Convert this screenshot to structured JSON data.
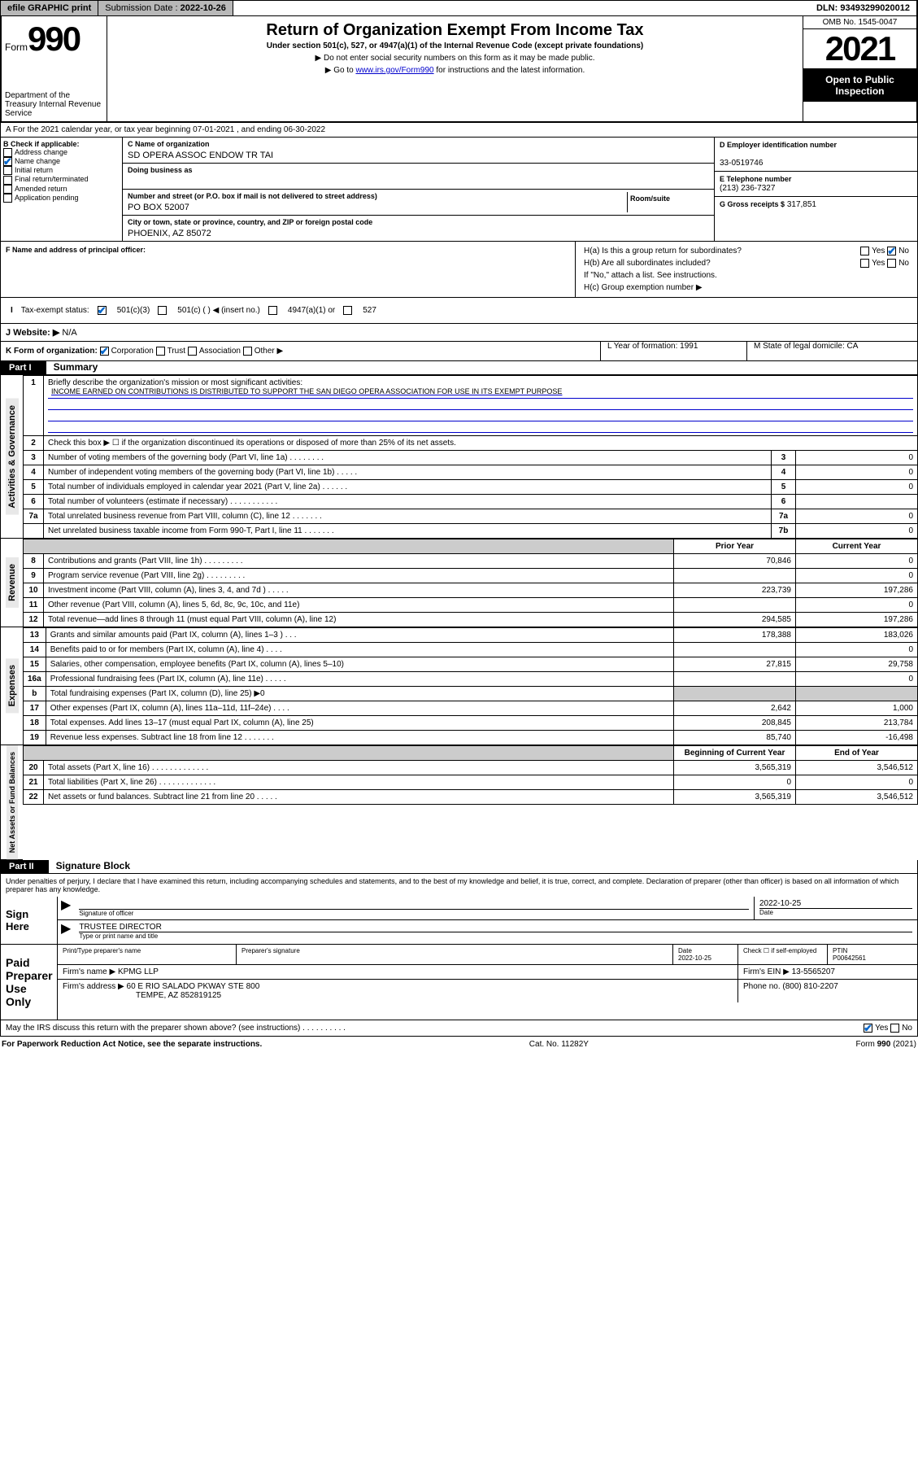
{
  "topbar": {
    "efile": "efile GRAPHIC print",
    "sub_label": "Submission Date :",
    "sub_date": "2022-10-26",
    "dln": "DLN: 93493299020012"
  },
  "header": {
    "form_word": "Form",
    "form_num": "990",
    "dept": "Department of the Treasury\nInternal Revenue Service",
    "title": "Return of Organization Exempt From Income Tax",
    "sub1": "Under section 501(c), 527, or 4947(a)(1) of the Internal Revenue Code (except private foundations)",
    "sub2": "▶ Do not enter social security numbers on this form as it may be made public.",
    "sub3_pre": "▶ Go to ",
    "sub3_link": "www.irs.gov/Form990",
    "sub3_post": " for instructions and the latest information.",
    "omb": "OMB No. 1545-0047",
    "year": "2021",
    "open": "Open to Public Inspection"
  },
  "line_a": "A For the 2021 calendar year, or tax year beginning 07-01-2021   , and ending 06-30-2022",
  "col_b": {
    "title": "B Check if applicable:",
    "items": [
      "Address change",
      "Name change",
      "Initial return",
      "Final return/terminated",
      "Amended return",
      "Application pending"
    ],
    "checked_idx": 1
  },
  "col_c": {
    "name_lbl": "C Name of organization",
    "name": "SD OPERA ASSOC ENDOW TR TAI",
    "dba_lbl": "Doing business as",
    "addr_lbl": "Number and street (or P.O. box if mail is not delivered to street address)",
    "addr": "PO BOX 52007",
    "room_lbl": "Room/suite",
    "city_lbl": "City or town, state or province, country, and ZIP or foreign postal code",
    "city": "PHOENIX, AZ  85072"
  },
  "col_d": {
    "lbl": "D Employer identification number",
    "val": "33-0519746"
  },
  "col_e": {
    "lbl": "E Telephone number",
    "val": "(213) 236-7327"
  },
  "col_g": {
    "lbl": "G Gross receipts $",
    "val": "317,851"
  },
  "f_lbl": "F  Name and address of principal officer:",
  "h": {
    "a": "H(a)  Is this a group return for subordinates?",
    "b": "H(b)  Are all subordinates included?",
    "b_note": "If \"No,\" attach a list. See instructions.",
    "c": "H(c)  Group exemption number ▶"
  },
  "tax_exempt": {
    "lbl": "Tax-exempt status:",
    "i": "I",
    "opts": [
      "501(c)(3)",
      "501(c) (   ) ◀ (insert no.)",
      "4947(a)(1) or",
      "527"
    ]
  },
  "j": {
    "lbl": "J   Website: ▶",
    "val": "N/A"
  },
  "k": {
    "lbl": "K Form of organization:",
    "opts": [
      "Corporation",
      "Trust",
      "Association",
      "Other ▶"
    ],
    "l": "L Year of formation: 1991",
    "m": "M State of legal domicile: CA"
  },
  "part1": {
    "hdr": "Part I",
    "title": "Summary",
    "q1": "Briefly describe the organization's mission or most significant activities:",
    "mission": "INCOME EARNED ON CONTRIBUTIONS IS DISTRIBUTED TO SUPPORT THE SAN DIEGO OPERA ASSOCIATION FOR USE IN ITS EXEMPT PURPOSE",
    "q2": "Check this box ▶ ☐  if the organization discontinued its operations or disposed of more than 25% of its net assets.",
    "rows_gov": [
      {
        "n": "3",
        "t": "Number of voting members of the governing body (Part VI, line 1a)   .    .    .    .    .    .    .    .",
        "b": "3",
        "v": "0"
      },
      {
        "n": "4",
        "t": "Number of independent voting members of the governing body (Part VI, line 1b)   .    .    .    .    .",
        "b": "4",
        "v": "0"
      },
      {
        "n": "5",
        "t": "Total number of individuals employed in calendar year 2021 (Part V, line 2a)   .    .    .    .    .    .",
        "b": "5",
        "v": "0"
      },
      {
        "n": "6",
        "t": "Total number of volunteers (estimate if necessary)   .    .    .    .    .    .    .    .    .    .    .",
        "b": "6",
        "v": ""
      },
      {
        "n": "7a",
        "t": "Total unrelated business revenue from Part VIII, column (C), line 12   .    .    .    .    .    .    .",
        "b": "7a",
        "v": "0"
      },
      {
        "n": "",
        "t": "Net unrelated business taxable income from Form 990-T, Part I, line 11   .    .    .    .    .    .    .",
        "b": "7b",
        "v": "0"
      }
    ],
    "col_hdr_prior": "Prior Year",
    "col_hdr_curr": "Current Year",
    "rows_rev": [
      {
        "n": "8",
        "t": "Contributions and grants (Part VIII, line 1h)   .    .    .    .    .    .    .    .    .",
        "p": "70,846",
        "c": "0"
      },
      {
        "n": "9",
        "t": "Program service revenue (Part VIII, line 2g)   .    .    .    .    .    .    .    .    .",
        "p": "",
        "c": "0"
      },
      {
        "n": "10",
        "t": "Investment income (Part VIII, column (A), lines 3, 4, and 7d )   .    .    .    .    .",
        "p": "223,739",
        "c": "197,286"
      },
      {
        "n": "11",
        "t": "Other revenue (Part VIII, column (A), lines 5, 6d, 8c, 9c, 10c, and 11e)",
        "p": "",
        "c": "0"
      },
      {
        "n": "12",
        "t": "Total revenue—add lines 8 through 11 (must equal Part VIII, column (A), line 12)",
        "p": "294,585",
        "c": "197,286"
      }
    ],
    "rows_exp": [
      {
        "n": "13",
        "t": "Grants and similar amounts paid (Part IX, column (A), lines 1–3 )   .    .    .",
        "p": "178,388",
        "c": "183,026"
      },
      {
        "n": "14",
        "t": "Benefits paid to or for members (Part IX, column (A), line 4)   .    .    .    .",
        "p": "",
        "c": "0"
      },
      {
        "n": "15",
        "t": "Salaries, other compensation, employee benefits (Part IX, column (A), lines 5–10)",
        "p": "27,815",
        "c": "29,758"
      },
      {
        "n": "16a",
        "t": "Professional fundraising fees (Part IX, column (A), line 11e)   .    .    .    .    .",
        "p": "",
        "c": "0"
      },
      {
        "n": "b",
        "t": "Total fundraising expenses (Part IX, column (D), line 25) ▶0",
        "p": "shade",
        "c": "shade"
      },
      {
        "n": "17",
        "t": "Other expenses (Part IX, column (A), lines 11a–11d, 11f–24e)   .    .    .    .",
        "p": "2,642",
        "c": "1,000"
      },
      {
        "n": "18",
        "t": "Total expenses. Add lines 13–17 (must equal Part IX, column (A), line 25)",
        "p": "208,845",
        "c": "213,784"
      },
      {
        "n": "19",
        "t": "Revenue less expenses. Subtract line 18 from line 12   .    .    .    .    .    .    .",
        "p": "85,740",
        "c": "-16,498"
      }
    ],
    "col_hdr_beg": "Beginning of Current Year",
    "col_hdr_end": "End of Year",
    "rows_net": [
      {
        "n": "20",
        "t": "Total assets (Part X, line 16)   .    .    .    .    .    .    .    .    .    .    .    .    .",
        "p": "3,565,319",
        "c": "3,546,512"
      },
      {
        "n": "21",
        "t": "Total liabilities (Part X, line 26)   .    .    .    .    .    .    .    .    .    .    .    .    .",
        "p": "0",
        "c": "0"
      },
      {
        "n": "22",
        "t": "Net assets or fund balances. Subtract line 21 from line 20   .    .    .    .    .",
        "p": "3,565,319",
        "c": "3,546,512"
      }
    ],
    "vlabels": [
      "Activities & Governance",
      "Revenue",
      "Expenses",
      "Net Assets or Fund Balances"
    ]
  },
  "part2": {
    "hdr": "Part II",
    "title": "Signature Block",
    "decl": "Under penalties of perjury, I declare that I have examined this return, including accompanying schedules and statements, and to the best of my knowledge and belief, it is true, correct, and complete. Declaration of preparer (other than officer) is based on all information of which preparer has any knowledge.",
    "sign_here": "Sign Here",
    "sig_officer": "Signature of officer",
    "sig_date": "2022-10-25",
    "date_lbl": "Date",
    "title_val": "TRUSTEE DIRECTOR",
    "title_lbl": "Type or print name and title",
    "paid": "Paid Preparer Use Only",
    "pt_name_lbl": "Print/Type preparer's name",
    "pt_sig_lbl": "Preparer's signature",
    "pt_date_lbl": "Date",
    "pt_date": "2022-10-25",
    "pt_check": "Check ☐ if self-employed",
    "ptin_lbl": "PTIN",
    "ptin": "P00642561",
    "firm_name_lbl": "Firm's name   ▶",
    "firm_name": "KPMG LLP",
    "firm_ein_lbl": "Firm's EIN ▶",
    "firm_ein": "13-5565207",
    "firm_addr_lbl": "Firm's address ▶",
    "firm_addr1": "60 E RIO SALADO PKWAY STE 800",
    "firm_addr2": "TEMPE, AZ  852819125",
    "phone_lbl": "Phone no.",
    "phone": "(800) 810-2207",
    "may_irs": "May the IRS discuss this return with the preparer shown above? (see instructions)   .    .    .    .    .    .    .    .    .    .",
    "yes": "Yes",
    "no": "No"
  },
  "footer": {
    "left": "For Paperwork Reduction Act Notice, see the separate instructions.",
    "mid": "Cat. No. 11282Y",
    "right": "Form 990 (2021)"
  },
  "colors": {
    "link": "#0000cc",
    "check": "#0066cc",
    "shade": "#cccccc",
    "topbar_bg": "#b8b8b8"
  }
}
